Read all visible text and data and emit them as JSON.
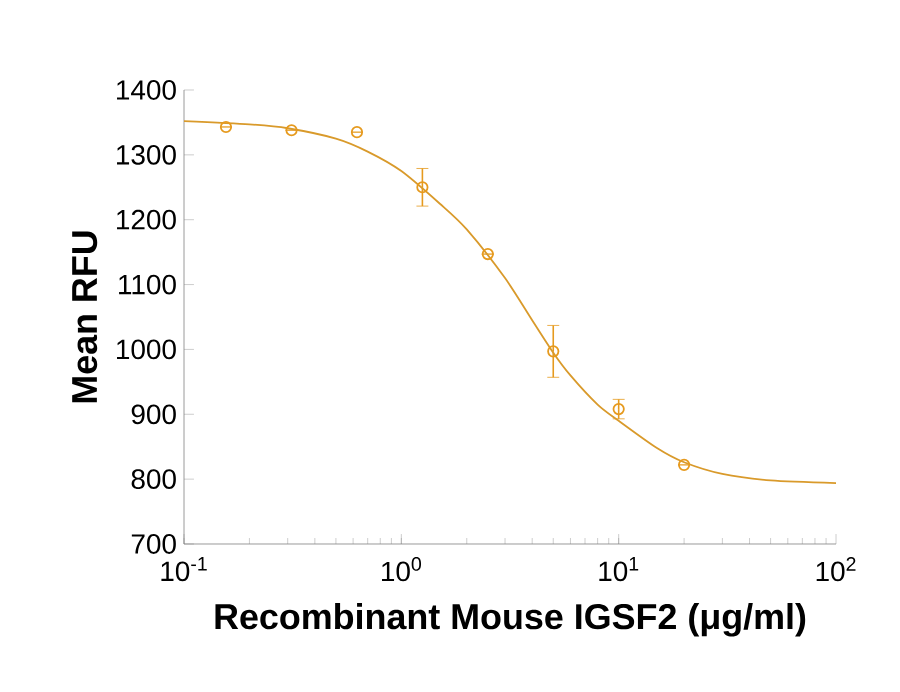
{
  "chart_data": {
    "type": "scatter",
    "xlabel": "Recombinant Mouse IGSF2 (μg/ml)",
    "ylabel": "Mean RFU",
    "log": "x",
    "xlim": [
      0.1,
      100
    ],
    "xticks": [
      {
        "value": 0.1,
        "label": "10$^{-1}$"
      },
      {
        "value": 1,
        "label": "10$^{0}$"
      },
      {
        "value": 10,
        "label": "10$^{1}$"
      },
      {
        "value": 100,
        "label": "10$^{2}$"
      }
    ],
    "ylim": [
      700,
      1400
    ],
    "yticks": [
      700,
      800,
      900,
      1000,
      1100,
      1200,
      1300,
      1400
    ],
    "grid": false,
    "series": [
      {
        "color": "#e69a1e",
        "marker": "circle",
        "x": [
          0.156,
          0.3125,
          0.625,
          1.25,
          2.5,
          5,
          10,
          20
        ],
        "values": [
          1343,
          1338,
          1335,
          1250,
          1147,
          997,
          908,
          822
        ],
        "errors": [
          null,
          null,
          null,
          29,
          null,
          40,
          15,
          null
        ]
      },
      {
        "type": "line",
        "color": "#d99a2b",
        "marker": "none",
        "x": [
          0.1,
          0.2,
          0.3,
          0.5,
          0.7,
          1,
          1.5,
          2,
          3,
          4,
          5,
          6,
          8,
          10,
          15,
          20,
          30,
          50,
          100
        ],
        "values": [
          1352,
          1347,
          1341,
          1325,
          1305,
          1275,
          1225,
          1185,
          1110,
          1045,
          995,
          960,
          915,
          890,
          848,
          826,
          808,
          798,
          794
        ]
      }
    ]
  }
}
